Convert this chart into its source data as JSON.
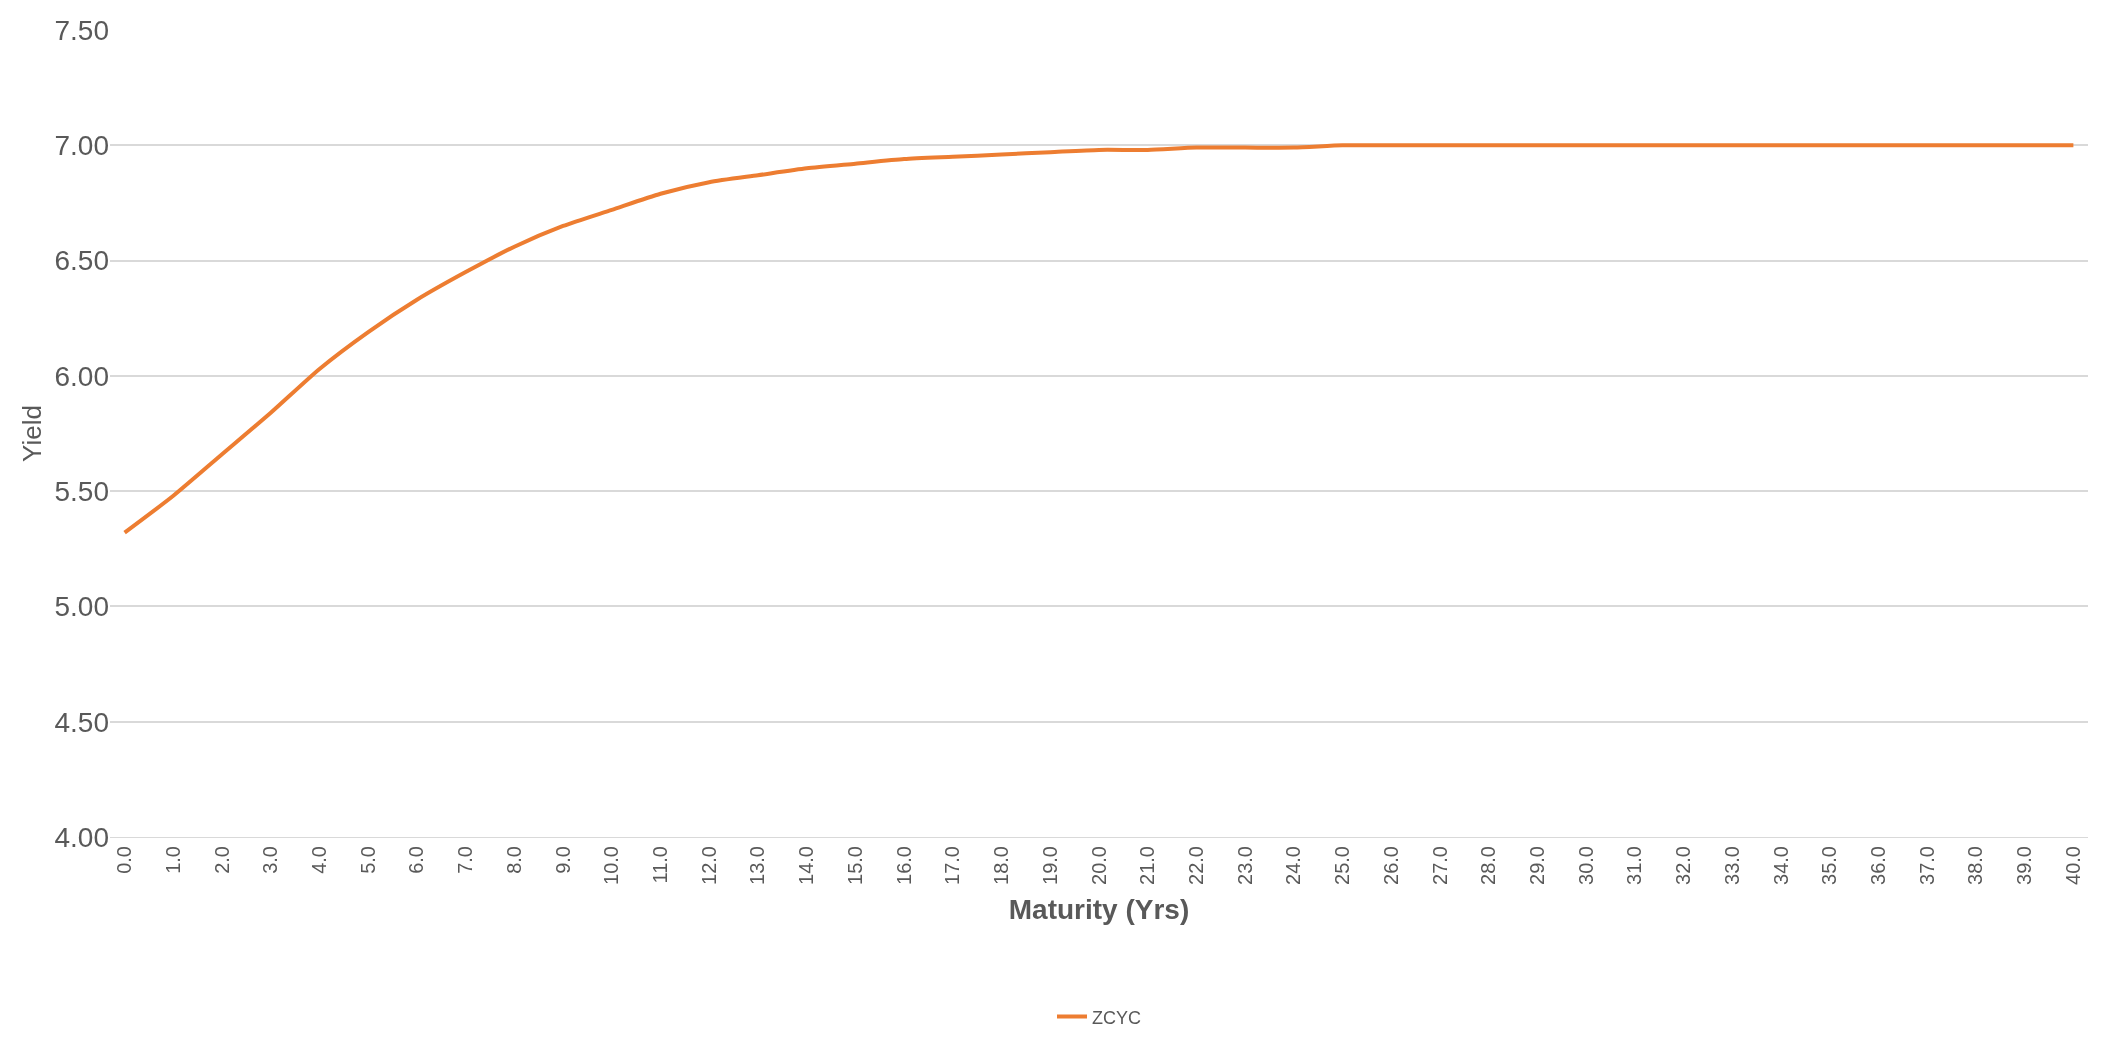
{
  "chart_data": {
    "type": "line",
    "xlabel": "Maturity (Yrs)",
    "ylabel": "Yield",
    "categories": [
      "0.0",
      "1.0",
      "2.0",
      "3.0",
      "4.0",
      "5.0",
      "6.0",
      "7.0",
      "8.0",
      "9.0",
      "10.0",
      "11.0",
      "12.0",
      "13.0",
      "14.0",
      "15.0",
      "16.0",
      "17.0",
      "18.0",
      "19.0",
      "20.0",
      "21.0",
      "22.0",
      "23.0",
      "24.0",
      "25.0",
      "26.0",
      "27.0",
      "28.0",
      "29.0",
      "30.0",
      "31.0",
      "32.0",
      "33.0",
      "34.0",
      "35.0",
      "36.0",
      "37.0",
      "38.0",
      "39.0",
      "40.0"
    ],
    "series": [
      {
        "name": "ZCYC",
        "color": "#ed7d31",
        "values": [
          5.32,
          5.48,
          5.66,
          5.84,
          6.03,
          6.19,
          6.33,
          6.45,
          6.56,
          6.65,
          6.72,
          6.79,
          6.84,
          6.87,
          6.9,
          6.92,
          6.94,
          6.95,
          6.96,
          6.97,
          6.98,
          6.98,
          6.99,
          6.99,
          6.99,
          7.0,
          7.0,
          7.0,
          7.0,
          7.0,
          7.0,
          7.0,
          7.0,
          7.0,
          7.0,
          7.0,
          7.0,
          7.0,
          7.0,
          7.0,
          7.0
        ]
      }
    ],
    "ylim": [
      4.0,
      7.5
    ],
    "yticks": [
      {
        "value": 4.0,
        "label": "4.00"
      },
      {
        "value": 4.5,
        "label": "4.50"
      },
      {
        "value": 5.0,
        "label": "5.00"
      },
      {
        "value": 5.5,
        "label": "5.50"
      },
      {
        "value": 6.0,
        "label": "6.00"
      },
      {
        "value": 6.5,
        "label": "6.50"
      },
      {
        "value": 7.0,
        "label": "7.00"
      },
      {
        "value": 7.5,
        "label": "7.50"
      }
    ],
    "grid": "y",
    "legend": "bottom",
    "marker": "none",
    "line_style": "solid"
  }
}
